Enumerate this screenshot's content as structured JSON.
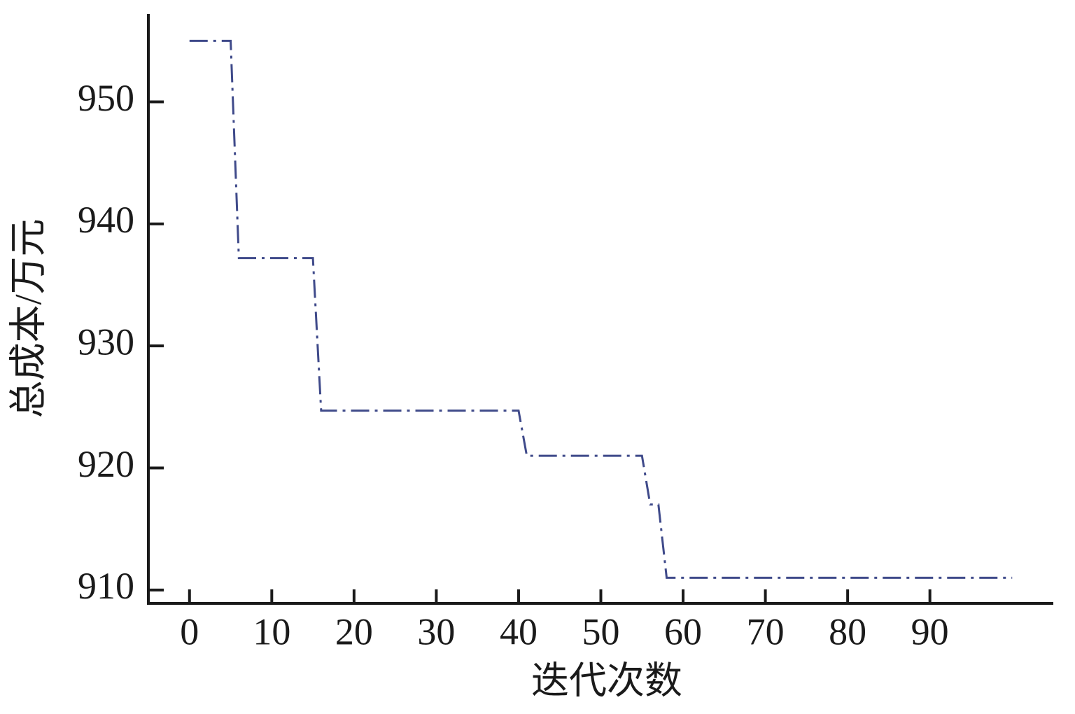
{
  "chart_data": {
    "type": "line",
    "x_label": "迭代次数",
    "y_label": "总成本/万元",
    "x": [
      0,
      5,
      6,
      15,
      16,
      40,
      41,
      55,
      56,
      57,
      58,
      100
    ],
    "values": [
      955,
      955,
      937.2,
      937.2,
      924.7,
      924.7,
      921,
      921,
      917,
      917,
      911,
      911
    ],
    "color": "#3f4a8a",
    "line_style": "dash-dot",
    "xlim": [
      -5,
      105
    ],
    "xticks": [
      0,
      10,
      20,
      30,
      40,
      50,
      60,
      70,
      80,
      90
    ],
    "ylim": [
      908.9,
      957.2
    ],
    "yticks": [
      910,
      920,
      930,
      940,
      950
    ],
    "grid": false
  }
}
